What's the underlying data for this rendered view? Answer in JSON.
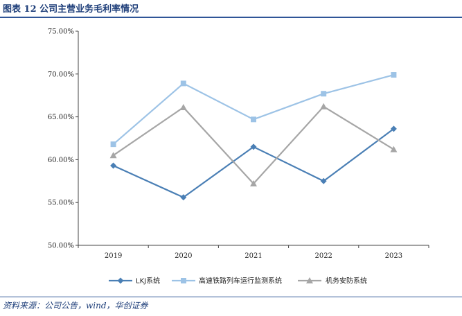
{
  "header": {
    "title": "图表 12   公司主营业务毛利率情况"
  },
  "footer": {
    "source": "资料来源：公司公告，wind，华创证券"
  },
  "chart_data": {
    "type": "line",
    "categories": [
      "2019",
      "2020",
      "2021",
      "2022",
      "2023"
    ],
    "ylim": [
      50,
      75
    ],
    "yticks": [
      "50.00%",
      "55.00%",
      "60.00%",
      "65.00%",
      "70.00%",
      "75.00%"
    ],
    "legend_position": "bottom",
    "grid": false,
    "series": [
      {
        "name": "LKJ系统",
        "values": [
          59.3,
          55.6,
          61.5,
          57.5,
          63.6
        ],
        "color": "#4a7fb5",
        "marker": "diamond"
      },
      {
        "name": "高速铁路列车运行监测系统",
        "values": [
          61.8,
          68.9,
          64.7,
          67.7,
          69.9
        ],
        "color": "#9dc3e6",
        "marker": "square"
      },
      {
        "name": "机务安防系统",
        "values": [
          60.5,
          66.1,
          57.2,
          66.2,
          61.2
        ],
        "color": "#a6a6a6",
        "marker": "triangle"
      }
    ]
  }
}
